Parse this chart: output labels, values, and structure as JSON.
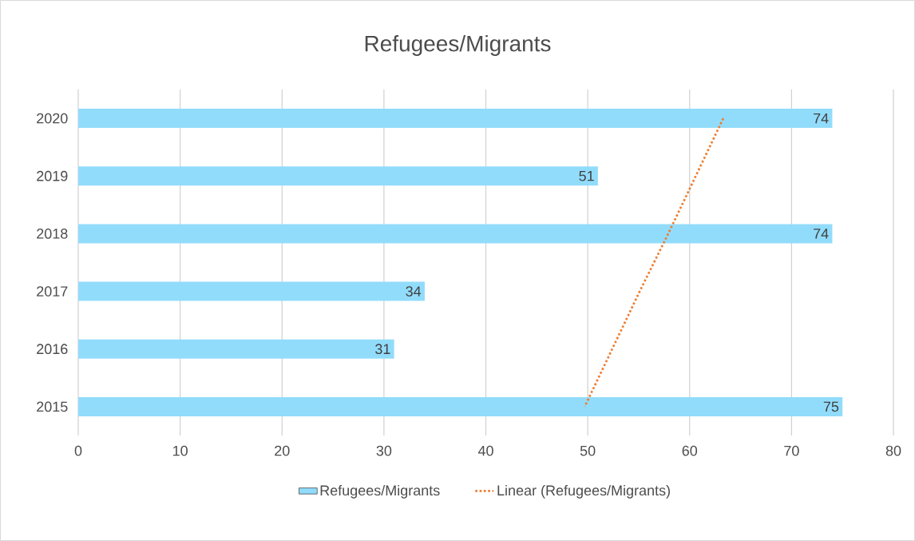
{
  "chart_data": {
    "type": "bar",
    "orientation": "horizontal",
    "title": "Refugees/Migrants",
    "categories": [
      "2020",
      "2019",
      "2018",
      "2017",
      "2016",
      "2015"
    ],
    "series": [
      {
        "name": "Refugees/Migrants",
        "color": "#92dcfb",
        "values": [
          74,
          51,
          74,
          34,
          31,
          75
        ],
        "value_labels": [
          "74",
          "51",
          "74",
          "34",
          "31",
          "75"
        ]
      },
      {
        "name": "Linear (Refugees/Migrants)",
        "type": "line",
        "line_style": "dotted",
        "color": "#ed7d31",
        "values": [
          63.3,
          60.6,
          57.9,
          55.1,
          52.4,
          49.7
        ]
      }
    ],
    "xlim": [
      0,
      80
    ],
    "xticks": [
      0,
      10,
      20,
      30,
      40,
      50,
      60,
      70,
      80
    ],
    "grid": "x",
    "legend": "bottom",
    "marker": "none"
  }
}
